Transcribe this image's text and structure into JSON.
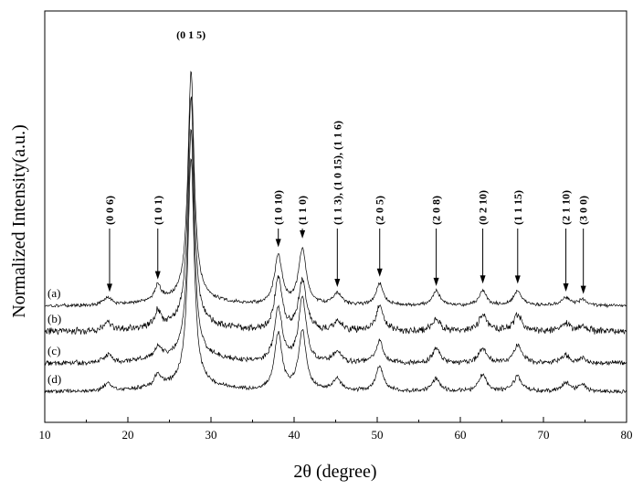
{
  "chart_data": {
    "type": "line",
    "title": "",
    "xlabel": "2θ (degree)",
    "ylabel": "Normalized Intensity(a.u.)",
    "xlim": [
      10,
      80
    ],
    "xticks": [
      10,
      20,
      30,
      40,
      50,
      60,
      70,
      80
    ],
    "yticks_shown": false,
    "grid": false,
    "legend": "inline labels at left",
    "peaks": [
      {
        "position": 27.6,
        "amplitude": 1.0,
        "width": 0.45
      },
      {
        "position": 17.6,
        "amplitude": 0.035,
        "width": 0.6
      },
      {
        "position": 23.6,
        "amplitude": 0.06,
        "width": 0.45
      },
      {
        "position": 38.1,
        "amplitude": 0.22,
        "width": 0.55
      },
      {
        "position": 41.0,
        "amplitude": 0.26,
        "width": 0.55
      },
      {
        "position": 45.2,
        "amplitude": 0.05,
        "width": 0.6
      },
      {
        "position": 50.3,
        "amplitude": 0.1,
        "width": 0.55
      },
      {
        "position": 57.1,
        "amplitude": 0.06,
        "width": 0.55
      },
      {
        "position": 62.7,
        "amplitude": 0.07,
        "width": 0.55
      },
      {
        "position": 66.9,
        "amplitude": 0.07,
        "width": 0.6
      },
      {
        "position": 72.7,
        "amplitude": 0.035,
        "width": 0.6
      },
      {
        "position": 74.7,
        "amplitude": 0.025,
        "width": 0.5
      }
    ],
    "series": [
      {
        "name": "(a)",
        "noise": 0.006
      },
      {
        "name": "(b)",
        "noise": 0.012
      },
      {
        "name": "(c)",
        "noise": 0.009
      },
      {
        "name": "(d)",
        "noise": 0.007
      }
    ],
    "annotations": [
      {
        "label": "(0 0 6)",
        "x": 17.8
      },
      {
        "label": "(1 0 1)",
        "x": 23.6
      },
      {
        "label": "(0 1 5)",
        "x": 27.6,
        "arrow": false
      },
      {
        "label": "(1 0 10)",
        "x": 38.1
      },
      {
        "label": "(1 1 0)",
        "x": 41.0
      },
      {
        "label": "(1 1 3), (1 0 15), (1 1 6)",
        "x": 45.2
      },
      {
        "label": "(2 0 5)",
        "x": 50.3
      },
      {
        "label": "(2 0 8)",
        "x": 57.1
      },
      {
        "label": "(0 2 10)",
        "x": 62.7
      },
      {
        "label": "(1 1 15)",
        "x": 66.9
      },
      {
        "label": "(2 1 10)",
        "x": 72.7
      },
      {
        "label": "(3 0 0)",
        "x": 74.8
      }
    ]
  }
}
